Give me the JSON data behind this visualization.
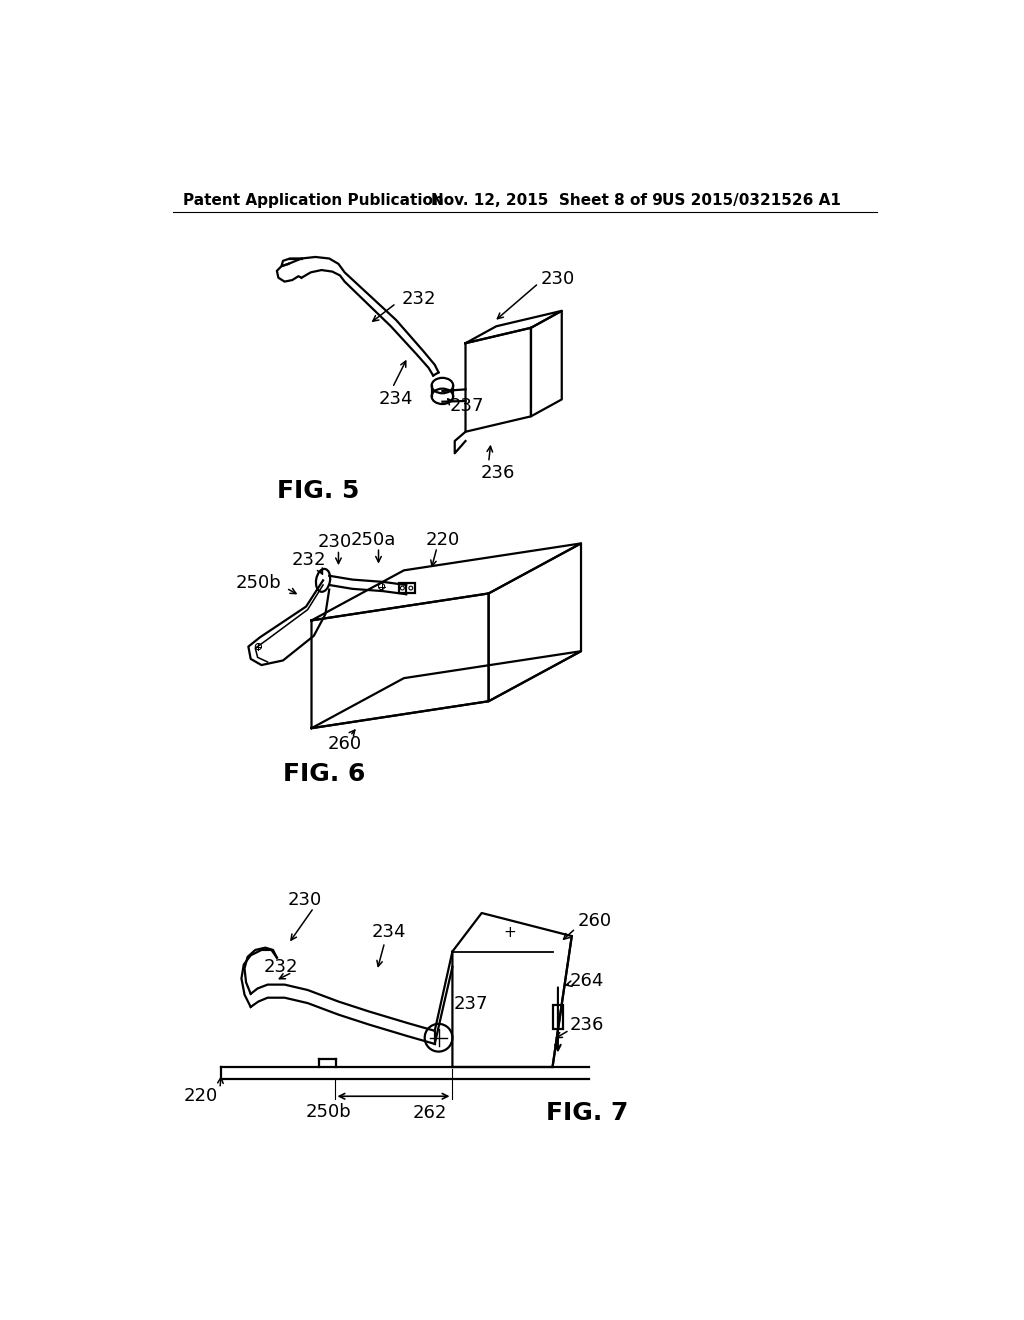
{
  "bg_color": "#ffffff",
  "header_left": "Patent Application Publication",
  "header_mid": "Nov. 12, 2015  Sheet 8 of 9",
  "header_right": "US 2015/0321526 A1",
  "fig5_label": "FIG. 5",
  "fig6_label": "FIG. 6",
  "fig7_label": "FIG. 7",
  "line_color": "#000000",
  "lw": 1.6,
  "fig_label_fontsize": 18,
  "ann_fontsize": 13,
  "header_fontsize": 11
}
